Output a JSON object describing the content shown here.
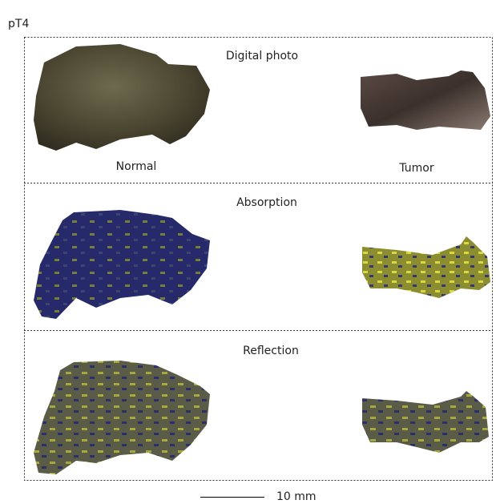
{
  "figure_label": "pT4",
  "panels": [
    {
      "title": "Digital photo"
    },
    {
      "title": "Absorption"
    },
    {
      "title": "Reflection"
    }
  ],
  "sample_labels": [
    "Normal",
    "Tumor"
  ],
  "scale_bar": "10 mm"
}
